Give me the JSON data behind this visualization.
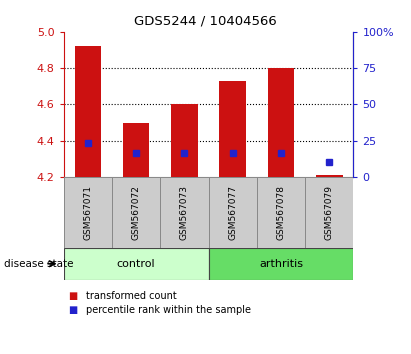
{
  "title": "GDS5244 / 10404566",
  "samples": [
    "GSM567071",
    "GSM567072",
    "GSM567073",
    "GSM567077",
    "GSM567078",
    "GSM567079"
  ],
  "bar_tops": [
    4.92,
    4.5,
    4.6,
    4.73,
    4.8,
    4.21
  ],
  "bar_bottom": 4.2,
  "blue_y": [
    4.385,
    4.33,
    4.335,
    4.33,
    4.335,
    4.28
  ],
  "ylim_left": [
    4.2,
    5.0
  ],
  "yticks_left": [
    4.2,
    4.4,
    4.6,
    4.8,
    5.0
  ],
  "ylim_right": [
    0,
    100
  ],
  "yticks_right": [
    0,
    25,
    50,
    75,
    100
  ],
  "ytick_labels_right": [
    "0",
    "25",
    "50",
    "75",
    "100%"
  ],
  "bar_color": "#cc1111",
  "blue_color": "#2222cc",
  "left_axis_color": "#cc1111",
  "right_axis_color": "#2222cc",
  "group_labels": [
    "control",
    "arthritis"
  ],
  "group_ranges": [
    [
      0,
      3
    ],
    [
      3,
      6
    ]
  ],
  "group_colors_light": [
    "#ccffcc",
    "#66dd66"
  ],
  "disease_state_label": "disease state",
  "legend_red_label": "transformed count",
  "legend_blue_label": "percentile rank within the sample",
  "sample_box_color": "#cccccc",
  "sample_box_edge": "#888888",
  "plot_bg": "#ffffff",
  "bar_width": 0.55
}
